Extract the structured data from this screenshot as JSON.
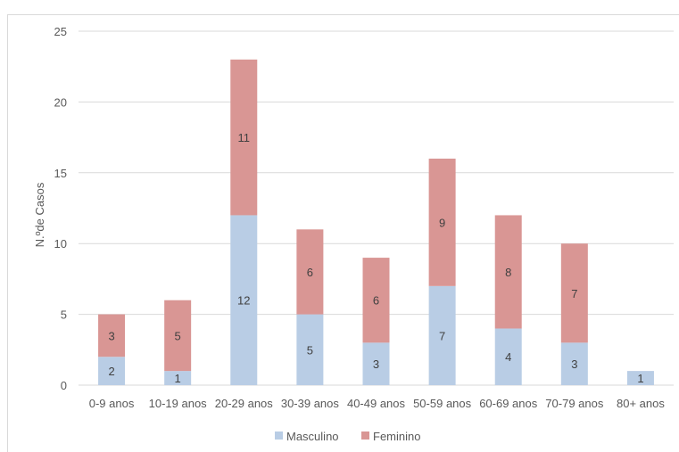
{
  "chart_data": {
    "type": "bar",
    "stacked": true,
    "title": "",
    "xlabel": "",
    "ylabel": "N.ºde Casos",
    "ylim": [
      0,
      25
    ],
    "yticks": [
      0,
      5,
      10,
      15,
      20,
      25
    ],
    "grid": true,
    "legend_position": "bottom",
    "categories": [
      "0-9 anos",
      "10-19 anos",
      "20-29 anos",
      "30-39 anos",
      "40-49 anos",
      "50-59 anos",
      "60-69 anos",
      "70-79 anos",
      "80+ anos"
    ],
    "series": [
      {
        "name": "Masculino",
        "color": "#b9cde5",
        "values": [
          2,
          1,
          12,
          5,
          3,
          7,
          4,
          3,
          1
        ]
      },
      {
        "name": "Feminino",
        "color": "#d99694",
        "values": [
          3,
          5,
          11,
          6,
          6,
          9,
          8,
          7,
          0
        ]
      }
    ]
  }
}
